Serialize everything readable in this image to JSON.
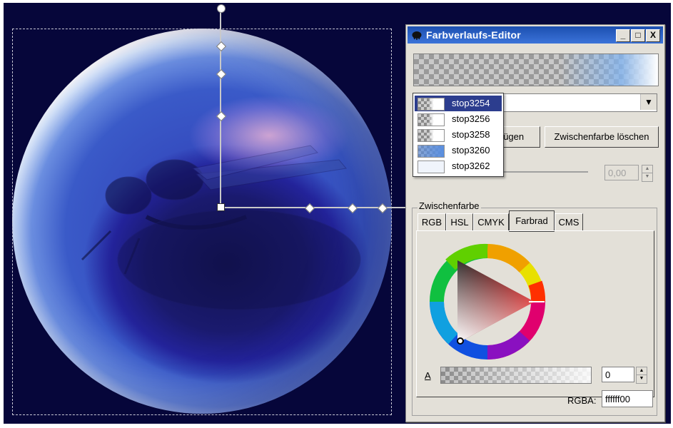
{
  "dialog": {
    "title": "Farbverlaufs-Editor",
    "window_buttons": [
      "_",
      "□",
      "X"
    ],
    "add_stop_button_partial": "zufügen",
    "delete_stop_button": "Zwischenfarbe löschen",
    "offset_value": "0,00",
    "frame_label": "Zwischenfarbe",
    "tabs": [
      {
        "label": "RGB",
        "active": false
      },
      {
        "label": "HSL",
        "active": false
      },
      {
        "label": "CMYK",
        "active": false
      },
      {
        "label": "Farbrad",
        "active": true
      },
      {
        "label": "CMS",
        "active": false
      }
    ],
    "alpha_label": "A",
    "alpha_value": "0",
    "rgba_label": "RGBA:",
    "rgba_value": "ffffff00"
  },
  "stops_dropdown": {
    "items": [
      {
        "label": "stop3254",
        "selected": true,
        "swatch": "checker-white"
      },
      {
        "label": "stop3256",
        "selected": false,
        "swatch": "checker-white"
      },
      {
        "label": "stop3258",
        "selected": false,
        "swatch": "checker-white"
      },
      {
        "label": "stop3260",
        "selected": false,
        "swatch": "blue"
      },
      {
        "label": "stop3262",
        "selected": false,
        "swatch": "white"
      }
    ]
  },
  "colors": {
    "canvas_background": "#06063a",
    "selected_item": "#2c3d8e",
    "titlebar": "#1c4fb0"
  }
}
